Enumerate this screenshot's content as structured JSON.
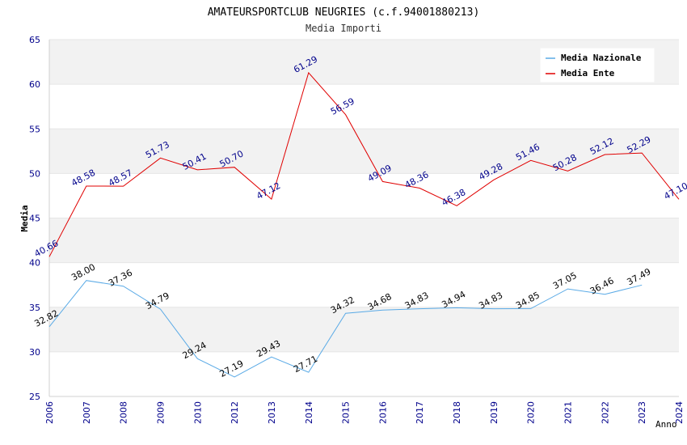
{
  "chart_data": {
    "type": "line",
    "title": "AMATEURSPORTCLUB NEUGRIES (c.f.94001880213)",
    "subtitle": "Media Importi",
    "xlabel": "Anno",
    "ylabel": "Media",
    "ylim": [
      25,
      65
    ],
    "yticks": [
      "25",
      "30",
      "35",
      "40",
      "45",
      "50",
      "55",
      "60",
      "65"
    ],
    "categories": [
      "2006",
      "2007",
      "2008",
      "2009",
      "2010",
      "2012",
      "2013",
      "2014",
      "2015",
      "2016",
      "2017",
      "2018",
      "2019",
      "2020",
      "2021",
      "2022",
      "2023",
      "2024"
    ],
    "legend_position": "top-right",
    "series": [
      {
        "name": "Media Nazionale",
        "color": "#5aaae6",
        "values": [
          32.82,
          38.0,
          37.36,
          34.79,
          29.24,
          27.19,
          29.43,
          27.71,
          34.32,
          34.68,
          34.83,
          34.94,
          34.83,
          34.85,
          37.05,
          36.46,
          37.49,
          null
        ],
        "labels": [
          "32.82",
          "38.00",
          "37.36",
          "34.79",
          "29.24",
          "27.19",
          "29.43",
          "27.71",
          "34.32",
          "34.68",
          "34.83",
          "34.94",
          "34.83",
          "34.85",
          "37.05",
          "36.46",
          "37.49",
          null
        ]
      },
      {
        "name": "Media Ente",
        "color": "#e00000",
        "values": [
          40.66,
          48.58,
          48.57,
          51.73,
          50.41,
          50.7,
          47.12,
          61.29,
          56.59,
          49.09,
          48.36,
          46.38,
          49.28,
          51.46,
          50.28,
          52.12,
          52.29,
          47.1
        ],
        "labels": [
          "40.66",
          "48.58",
          "48.57",
          "51.73",
          "50.41",
          "50.70",
          "47.12",
          "61.29",
          "56.59",
          "49.09",
          "48.36",
          "46.38",
          "49.28",
          "51.46",
          "50.28",
          "52.12",
          "52.29",
          "47.10"
        ]
      }
    ]
  }
}
